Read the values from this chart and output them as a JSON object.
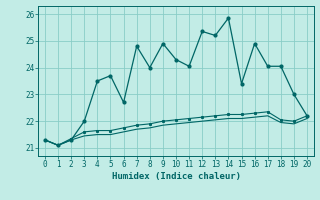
{
  "title": "",
  "xlabel": "Humidex (Indice chaleur)",
  "bg_color": "#c2ece6",
  "grid_color": "#89cdc7",
  "line_color": "#006666",
  "xlim": [
    -0.5,
    20.5
  ],
  "ylim": [
    20.7,
    26.3
  ],
  "yticks": [
    21,
    22,
    23,
    24,
    25,
    26
  ],
  "xticks": [
    0,
    1,
    2,
    3,
    4,
    5,
    6,
    7,
    8,
    9,
    10,
    11,
    12,
    13,
    14,
    15,
    16,
    17,
    18,
    19,
    20
  ],
  "main_line_x": [
    0,
    1,
    2,
    3,
    4,
    5,
    6,
    7,
    8,
    9,
    10,
    11,
    12,
    13,
    14,
    15,
    16,
    17,
    18,
    19,
    20
  ],
  "main_line_y": [
    21.3,
    21.1,
    21.3,
    22.0,
    23.5,
    23.7,
    22.7,
    24.8,
    24.0,
    24.9,
    24.3,
    24.05,
    25.35,
    25.2,
    25.85,
    23.4,
    24.9,
    24.05,
    24.05,
    23.0,
    22.2
  ],
  "ref_line1_x": [
    0,
    1,
    2,
    3,
    4,
    5,
    6,
    7,
    8,
    9,
    10,
    11,
    12,
    13,
    14,
    15,
    16,
    17,
    18,
    19,
    20
  ],
  "ref_line1_y": [
    21.3,
    21.1,
    21.35,
    21.6,
    21.65,
    21.65,
    21.75,
    21.85,
    21.9,
    22.0,
    22.05,
    22.1,
    22.15,
    22.2,
    22.25,
    22.25,
    22.3,
    22.35,
    22.05,
    22.0,
    22.2
  ],
  "ref_line2_x": [
    0,
    1,
    2,
    3,
    4,
    5,
    6,
    7,
    8,
    9,
    10,
    11,
    12,
    13,
    14,
    15,
    16,
    17,
    18,
    19,
    20
  ],
  "ref_line2_y": [
    21.3,
    21.1,
    21.3,
    21.45,
    21.5,
    21.5,
    21.6,
    21.7,
    21.75,
    21.85,
    21.9,
    21.95,
    22.0,
    22.05,
    22.1,
    22.1,
    22.15,
    22.2,
    21.95,
    21.9,
    22.1
  ]
}
